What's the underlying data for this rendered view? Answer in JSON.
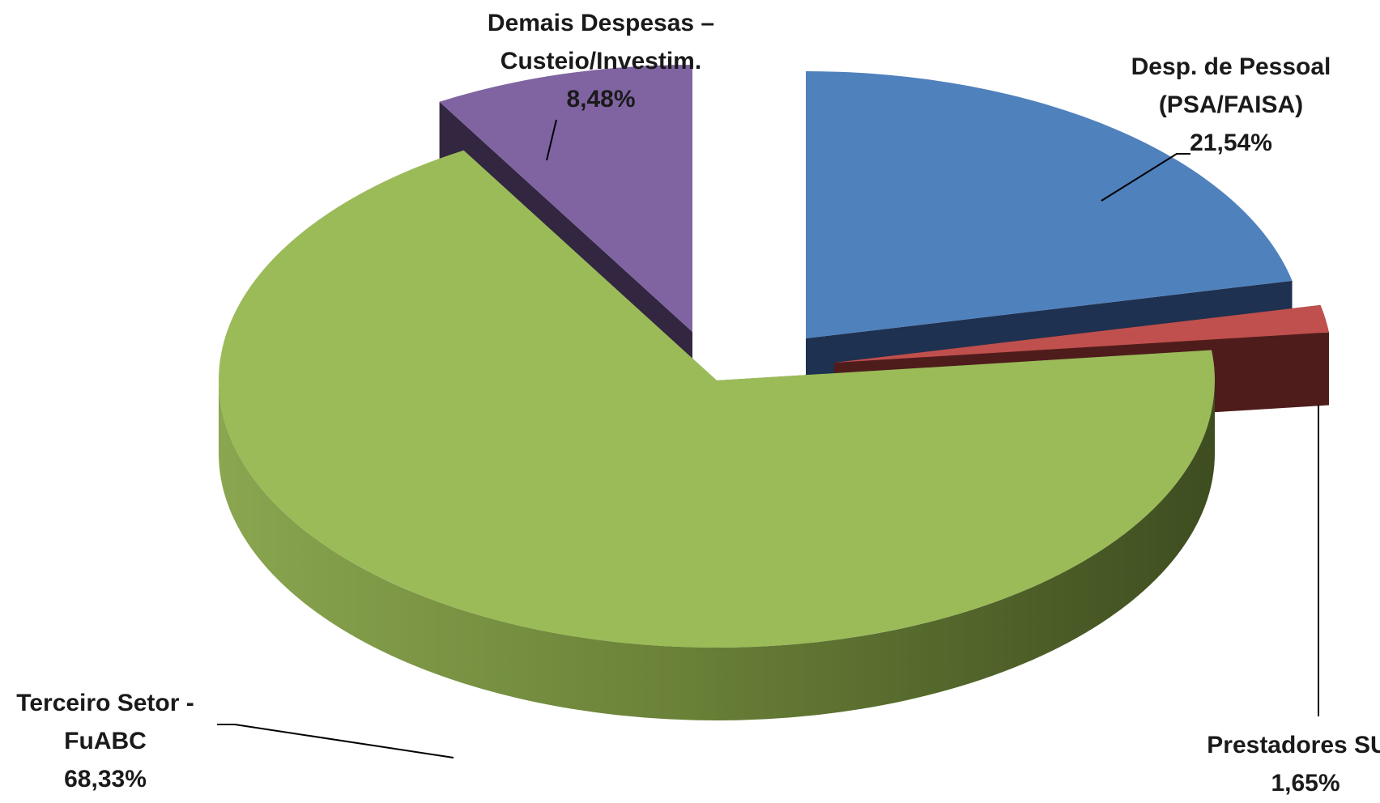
{
  "chart_data": {
    "type": "pie",
    "style": "3d-exploded",
    "title": "",
    "slices": [
      {
        "name": "Desp. de Pessoal (PSA/FAISA)",
        "label_lines": [
          "Desp. de Pessoal",
          "(PSA/FAISA)"
        ],
        "value": 21.54,
        "value_label": "21,54%",
        "color": "#4F81BD",
        "side_color": "#1F3150"
      },
      {
        "name": "Prestadores SUS",
        "label_lines": [
          "Prestadores SUS"
        ],
        "value": 1.65,
        "value_label": "1,65%",
        "color": "#C0504D",
        "side_color": "#4F1C1C"
      },
      {
        "name": "Terceiro Setor - FuABC",
        "label_lines": [
          "Terceiro Setor -",
          "FuABC"
        ],
        "value": 68.33,
        "value_label": "68,33%",
        "color": "#9BBB59",
        "side_color": "#5E7434"
      },
      {
        "name": "Demais Despesas – Custeio/Investim.",
        "label_lines": [
          "Demais Despesas –",
          "Custeio/Investim."
        ],
        "value": 8.48,
        "value_label": "8,48%",
        "color": "#8064A2",
        "side_color": "#322640"
      }
    ],
    "legend": "none",
    "data_labels": "outside-with-leader-lines"
  }
}
